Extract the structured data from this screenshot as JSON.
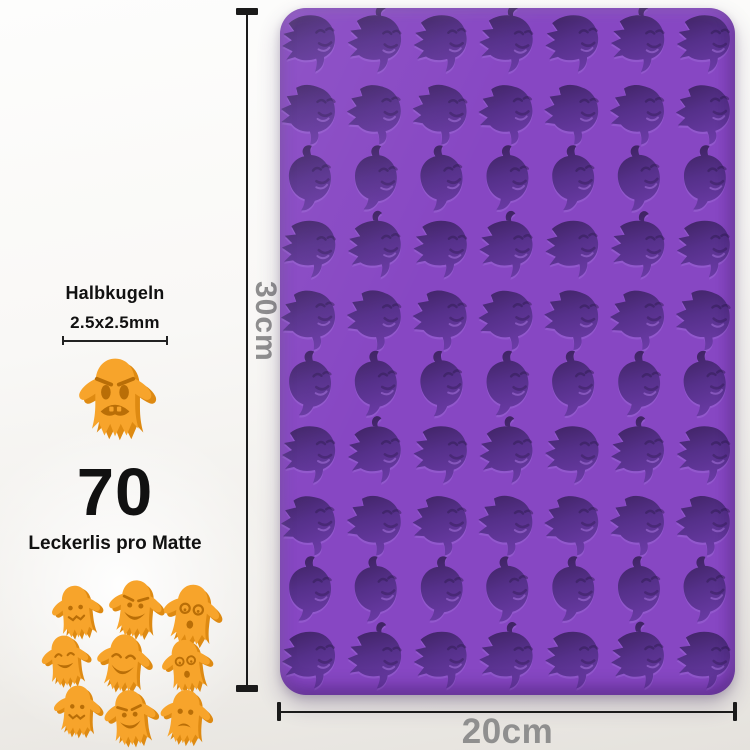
{
  "left_panel": {
    "spec_title": "Halbkugeln",
    "spec_size": "2.5x2.5mm",
    "count_number": "70",
    "count_label": "Leckerlis pro Matte",
    "big_ghost_face": "angrysad",
    "ghost_faces": [
      "worried",
      "grin",
      "shock",
      "happy",
      "laugh",
      "shock",
      "worried",
      "grin",
      "sad"
    ]
  },
  "dimensions": {
    "height_label": "30cm",
    "width_label": "20cm"
  },
  "mold": {
    "rows": 10,
    "cols": 7,
    "cavity_total": 70
  },
  "colors": {
    "mold_surface": "#8747c3",
    "cavity_dark": "#3d2260",
    "cavity_mid": "#55308a",
    "cavity_light": "#6d3ca9",
    "cavity_rim": "#a272dc",
    "ghost_main": "#F7A42B",
    "ghost_shade": "#DE8A12",
    "ghost_detail": "#B96E07",
    "dim_line": "#1a1a1a",
    "dim_label": "#8f8f8f",
    "text": "#111111"
  }
}
